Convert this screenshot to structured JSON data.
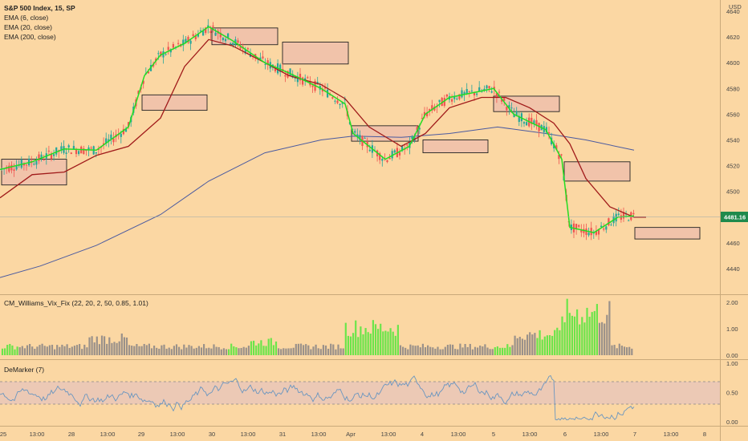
{
  "chart_data": [
    {
      "type": "candlestick",
      "title": "S&P 500 Index, 15, SP",
      "currency": "USD",
      "indicators": [
        "EMA (6, close)",
        "EMA (20, close)",
        "EMA (200, close)"
      ],
      "yticks": [
        4440,
        4460,
        4480,
        4500,
        4520,
        4540,
        4560,
        4580,
        4600,
        4620,
        4640
      ],
      "ylim": [
        4428,
        4648
      ],
      "last_price": "4481.16",
      "xticks": [
        "25",
        "13:00",
        "28",
        "13:00",
        "29",
        "13:00",
        "30",
        "13:00",
        "31",
        "13:00",
        "Apr",
        "13:00",
        "4",
        "13:00",
        "5",
        "13:00",
        "6",
        "13:00",
        "7",
        "13:00",
        "8"
      ],
      "ema6": [
        [
          0,
          4517
        ],
        [
          40,
          4523
        ],
        [
          80,
          4533
        ],
        [
          120,
          4532
        ],
        [
          160,
          4550
        ],
        [
          180,
          4590
        ],
        [
          200,
          4606
        ],
        [
          230,
          4615
        ],
        [
          260,
          4628
        ],
        [
          290,
          4617
        ],
        [
          330,
          4600
        ],
        [
          360,
          4592
        ],
        [
          400,
          4580
        ],
        [
          430,
          4568
        ],
        [
          440,
          4545
        ],
        [
          480,
          4525
        ],
        [
          510,
          4535
        ],
        [
          530,
          4560
        ],
        [
          560,
          4573
        ],
        [
          600,
          4578
        ],
        [
          615,
          4580
        ],
        [
          640,
          4560
        ],
        [
          680,
          4548
        ],
        [
          700,
          4525
        ],
        [
          710,
          4472
        ],
        [
          740,
          4468
        ],
        [
          770,
          4480
        ],
        [
          790,
          4481
        ]
      ],
      "ema20": [
        [
          0,
          4495
        ],
        [
          40,
          4513
        ],
        [
          80,
          4515
        ],
        [
          120,
          4528
        ],
        [
          160,
          4535
        ],
        [
          200,
          4557
        ],
        [
          230,
          4597
        ],
        [
          260,
          4618
        ],
        [
          290,
          4613
        ],
        [
          330,
          4600
        ],
        [
          360,
          4590
        ],
        [
          400,
          4583
        ],
        [
          430,
          4572
        ],
        [
          460,
          4550
        ],
        [
          500,
          4535
        ],
        [
          530,
          4545
        ],
        [
          560,
          4565
        ],
        [
          600,
          4573
        ],
        [
          630,
          4573
        ],
        [
          660,
          4565
        ],
        [
          690,
          4553
        ],
        [
          710,
          4537
        ],
        [
          730,
          4510
        ],
        [
          760,
          4488
        ],
        [
          790,
          4480
        ],
        [
          805,
          4480
        ]
      ],
      "ema200": [
        [
          0,
          4433
        ],
        [
          50,
          4442
        ],
        [
          120,
          4458
        ],
        [
          200,
          4482
        ],
        [
          260,
          4508
        ],
        [
          330,
          4530
        ],
        [
          400,
          4540
        ],
        [
          440,
          4543
        ],
        [
          500,
          4542
        ],
        [
          560,
          4545
        ],
        [
          620,
          4550
        ],
        [
          680,
          4545
        ],
        [
          730,
          4540
        ],
        [
          790,
          4532
        ]
      ],
      "zones": [
        {
          "x1": 2,
          "x2": 83,
          "top": 4525,
          "bottom": 4505
        },
        {
          "x1": 177,
          "x2": 258,
          "top": 4575,
          "bottom": 4563
        },
        {
          "x1": 264,
          "x2": 346,
          "top": 4627,
          "bottom": 4614
        },
        {
          "x1": 352,
          "x2": 434,
          "top": 4616,
          "bottom": 4599
        },
        {
          "x1": 438,
          "x2": 521,
          "top": 4551,
          "bottom": 4539
        },
        {
          "x1": 527,
          "x2": 608,
          "top": 4540,
          "bottom": 4530
        },
        {
          "x1": 615,
          "x2": 697,
          "top": 4574,
          "bottom": 4562
        },
        {
          "x1": 703,
          "x2": 785,
          "top": 4523,
          "bottom": 4508
        },
        {
          "x1": 791,
          "x2": 872,
          "top": 4472,
          "bottom": 4463
        }
      ]
    },
    {
      "type": "bar",
      "title": "CM_Williams_Vix_Fix (22, 20, 2, 50, 0.85, 1.01)",
      "yticks": [
        "2.00",
        "1.00",
        "0.00"
      ],
      "ylim": [
        0,
        2.2
      ]
    },
    {
      "type": "line",
      "title": "DeMarker (7)",
      "yticks": [
        "1.00",
        "0.50",
        "0.00"
      ],
      "ylim": [
        -0.05,
        1.05
      ],
      "band": [
        0.3,
        0.7
      ]
    }
  ]
}
